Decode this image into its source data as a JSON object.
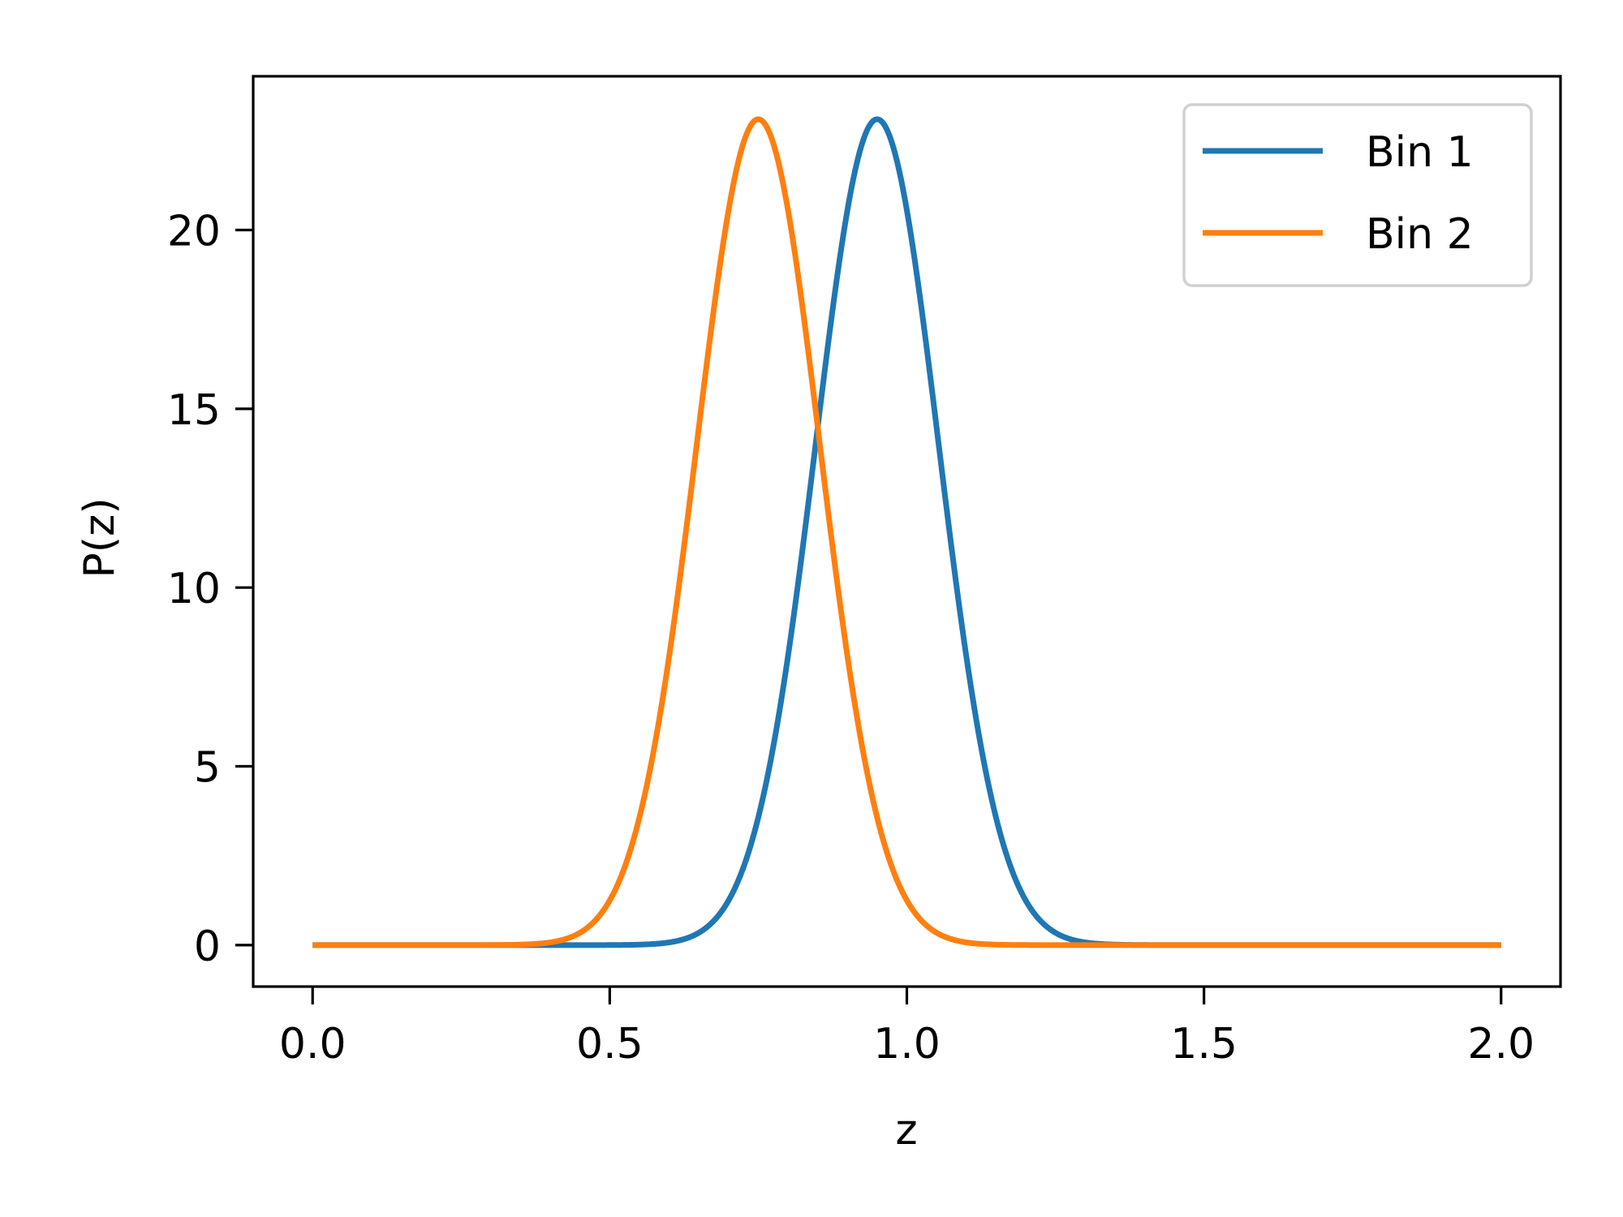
{
  "chart_data": {
    "type": "line",
    "title": "",
    "xlabel": "z",
    "ylabel": "P(z)",
    "xlim": [
      -0.1,
      2.1
    ],
    "ylim": [
      -1.16,
      24.3
    ],
    "xticks": [
      0.0,
      0.5,
      1.0,
      1.5,
      2.0
    ],
    "xtick_labels": [
      "0.0",
      "0.5",
      "1.0",
      "1.5",
      "2.0"
    ],
    "yticks": [
      0,
      5,
      10,
      15,
      20
    ],
    "ytick_labels": [
      "0",
      "5",
      "10",
      "15",
      "20"
    ],
    "grid": false,
    "legend": "top-right",
    "x_range": [
      0.0,
      2.0
    ],
    "series": [
      {
        "name": "Bin 1",
        "color": "#1f77b4",
        "distribution": "gaussian",
        "mean": 0.95,
        "sigma": 0.1035,
        "peak": 23.1
      },
      {
        "name": "Bin 2",
        "color": "#ff7f0e",
        "distribution": "gaussian",
        "mean": 0.75,
        "sigma": 0.1035,
        "peak": 23.1
      }
    ]
  }
}
